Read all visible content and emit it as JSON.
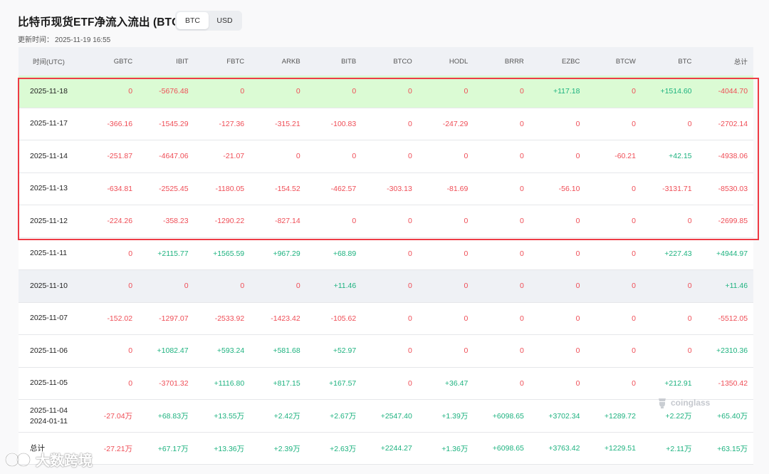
{
  "page": {
    "title": "比特币现货ETF净流入流出 (BTC)",
    "toggle": {
      "btc": "BTC",
      "usd": "USD",
      "active": "BTC"
    },
    "updated_label": "更新时间：",
    "updated_time": "2025-11-19 16:55"
  },
  "table": {
    "headers": [
      "时间(UTC)",
      "GBTC",
      "IBIT",
      "FBTC",
      "ARKB",
      "BITB",
      "BTCO",
      "HODL",
      "BRRR",
      "EZBC",
      "BTCW",
      "BTC",
      "总计"
    ],
    "rows": [
      {
        "date": "2025-11-18",
        "date2": "",
        "cells": [
          "0",
          "-5676.48",
          "0",
          "0",
          "0",
          "0",
          "0",
          "0",
          "+117.18",
          "0",
          "+1514.60",
          "-4044.70"
        ]
      },
      {
        "date": "2025-11-17",
        "date2": "",
        "cells": [
          "-366.16",
          "-1545.29",
          "-127.36",
          "-315.21",
          "-100.83",
          "0",
          "-247.29",
          "0",
          "0",
          "0",
          "0",
          "-2702.14"
        ]
      },
      {
        "date": "2025-11-14",
        "date2": "",
        "cells": [
          "-251.87",
          "-4647.06",
          "-21.07",
          "0",
          "0",
          "0",
          "0",
          "0",
          "0",
          "-60.21",
          "+42.15",
          "-4938.06"
        ]
      },
      {
        "date": "2025-11-13",
        "date2": "",
        "cells": [
          "-634.81",
          "-2525.45",
          "-1180.05",
          "-154.52",
          "-462.57",
          "-303.13",
          "-81.69",
          "0",
          "-56.10",
          "0",
          "-3131.71",
          "-8530.03"
        ]
      },
      {
        "date": "2025-11-12",
        "date2": "",
        "cells": [
          "-224.26",
          "-358.23",
          "-1290.22",
          "-827.14",
          "0",
          "0",
          "0",
          "0",
          "0",
          "0",
          "0",
          "-2699.85"
        ]
      },
      {
        "date": "2025-11-11",
        "date2": "",
        "cells": [
          "0",
          "+2115.77",
          "+1565.59",
          "+967.29",
          "+68.89",
          "0",
          "0",
          "0",
          "0",
          "0",
          "+227.43",
          "+4944.97"
        ]
      },
      {
        "date": "2025-11-10",
        "date2": "",
        "cells": [
          "0",
          "0",
          "0",
          "0",
          "+11.46",
          "0",
          "0",
          "0",
          "0",
          "0",
          "0",
          "+11.46"
        ]
      },
      {
        "date": "2025-11-07",
        "date2": "",
        "cells": [
          "-152.02",
          "-1297.07",
          "-2533.92",
          "-1423.42",
          "-105.62",
          "0",
          "0",
          "0",
          "0",
          "0",
          "0",
          "-5512.05"
        ]
      },
      {
        "date": "2025-11-06",
        "date2": "",
        "cells": [
          "0",
          "+1082.47",
          "+593.24",
          "+581.68",
          "+52.97",
          "0",
          "0",
          "0",
          "0",
          "0",
          "0",
          "+2310.36"
        ]
      },
      {
        "date": "2025-11-05",
        "date2": "",
        "cells": [
          "0",
          "-3701.32",
          "+1116.80",
          "+817.15",
          "+167.57",
          "0",
          "+36.47",
          "0",
          "0",
          "0",
          "+212.91",
          "-1350.42"
        ]
      },
      {
        "date": "2025-11-04",
        "date2": "2024-01-11",
        "cells": [
          "-27.04万",
          "+68.83万",
          "+13.55万",
          "+2.42万",
          "+2.67万",
          "+2547.40",
          "+1.39万",
          "+6098.65",
          "+3702.34",
          "+1289.72",
          "+2.22万",
          "+65.40万"
        ]
      },
      {
        "date": "总计",
        "date2": "",
        "cells": [
          "-27.21万",
          "+67.17万",
          "+13.36万",
          "+2.39万",
          "+2.63万",
          "+2244.27",
          "+1.36万",
          "+6098.65",
          "+3763.42",
          "+1229.51",
          "+2.11万",
          "+63.15万"
        ]
      }
    ]
  },
  "watermarks": {
    "coinglass": "coinglass",
    "bottom": "大数跨境"
  },
  "colors": {
    "negative": "#ef4d56",
    "positive": "#1db27f",
    "highlight_row": "#dbfbd4",
    "alt_row": "#eff1f5",
    "frame": "#ee3b45"
  }
}
